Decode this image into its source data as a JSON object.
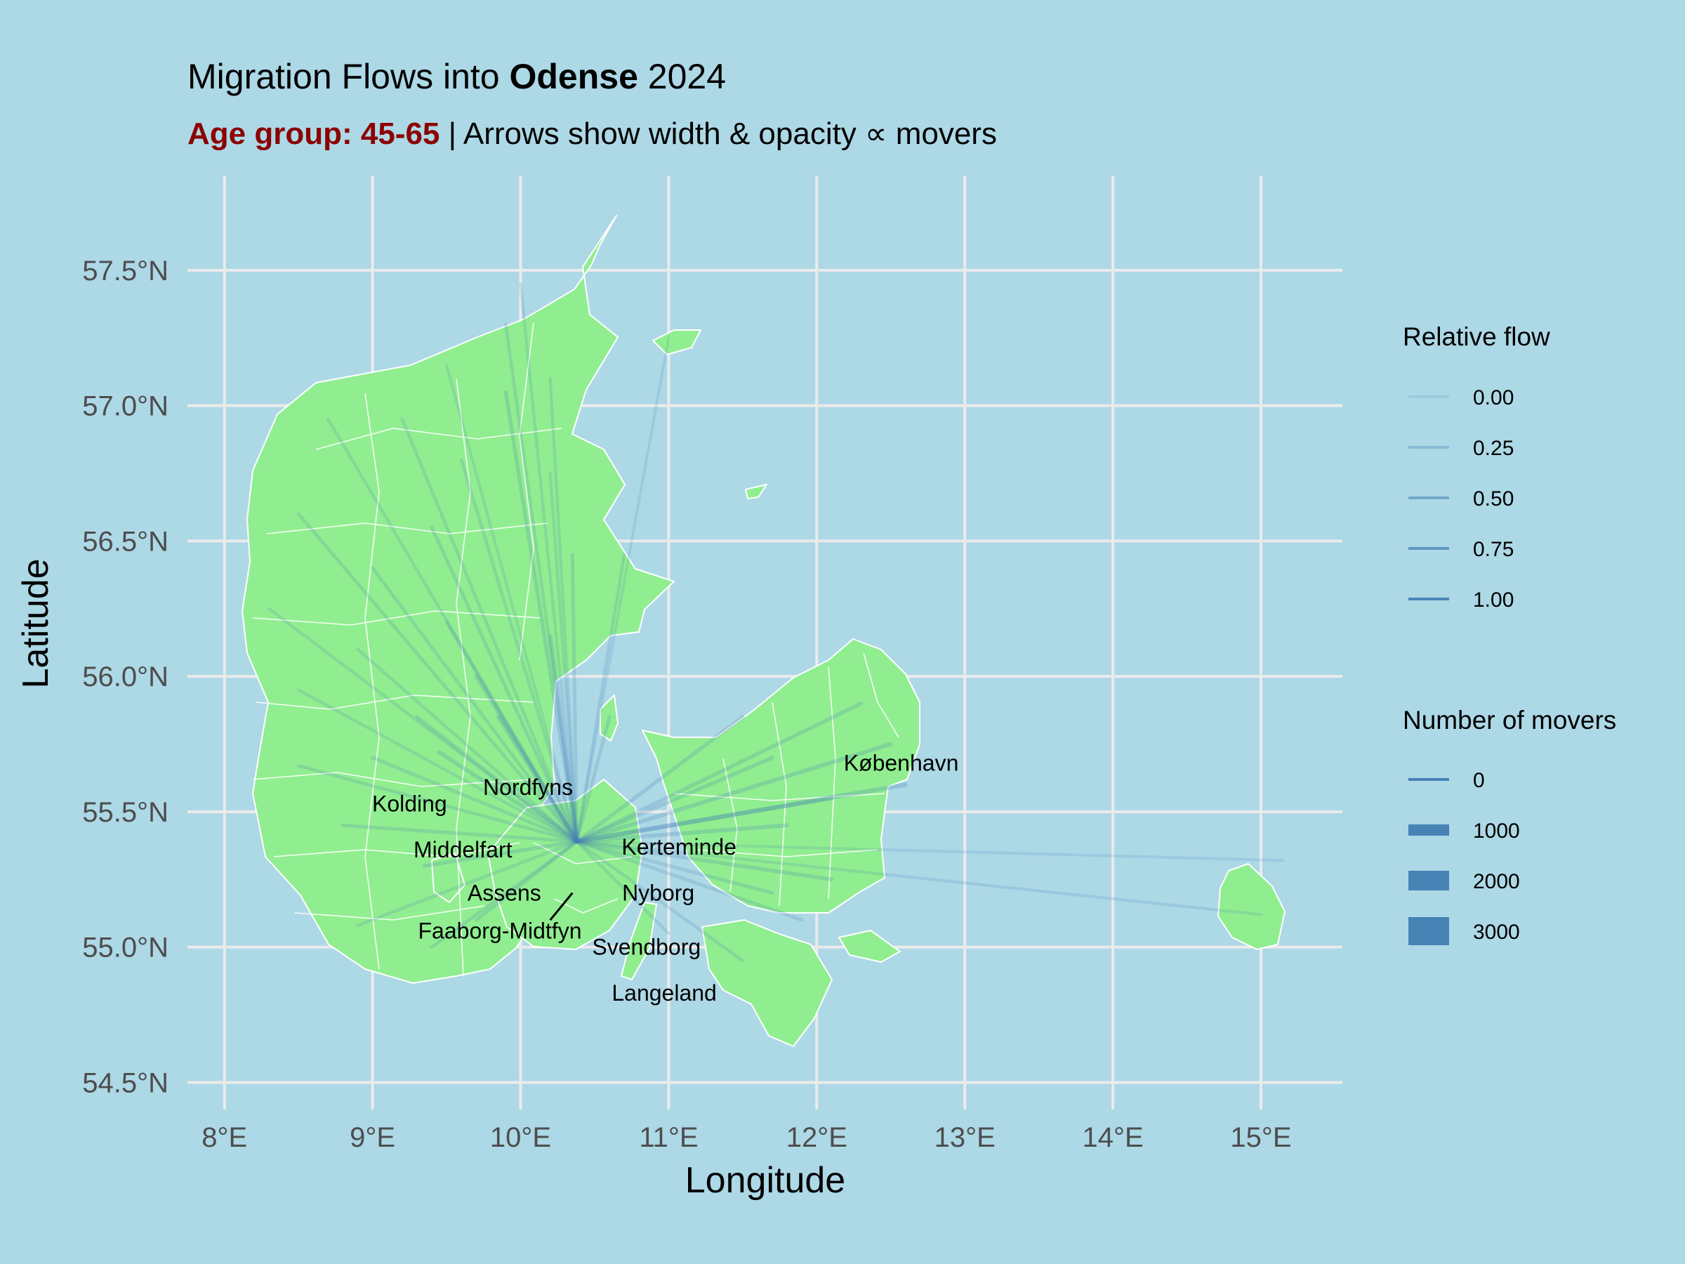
{
  "title": {
    "prefix": "Migration Flows into ",
    "bold": "Odense",
    "suffix": " 2024"
  },
  "subtitle": {
    "highlight": "Age group: 45-65",
    "rest": " | Arrows show width & opacity ∝ movers"
  },
  "axes": {
    "xlabel": "Longitude",
    "ylabel": "Latitude",
    "xlim": [
      7.75,
      15.55
    ],
    "ylim": [
      54.4,
      57.85
    ],
    "xticks": [
      {
        "v": 8,
        "label": "8°E"
      },
      {
        "v": 9,
        "label": "9°E"
      },
      {
        "v": 10,
        "label": "10°E"
      },
      {
        "v": 11,
        "label": "11°E"
      },
      {
        "v": 12,
        "label": "12°E"
      },
      {
        "v": 13,
        "label": "13°E"
      },
      {
        "v": 14,
        "label": "14°E"
      },
      {
        "v": 15,
        "label": "15°E"
      }
    ],
    "yticks": [
      {
        "v": 54.5,
        "label": "54.5°N"
      },
      {
        "v": 55.0,
        "label": "55.0°N"
      },
      {
        "v": 55.5,
        "label": "55.5°N"
      },
      {
        "v": 56.0,
        "label": "56.0°N"
      },
      {
        "v": 56.5,
        "label": "56.5°N"
      },
      {
        "v": 57.0,
        "label": "57.0°N"
      },
      {
        "v": 57.5,
        "label": "57.5°N"
      }
    ],
    "grid": true
  },
  "colors": {
    "land": "#90ee90",
    "sea": "#add8e6",
    "border": "#ffffff",
    "flow": "#4682b4",
    "grid": "#ebebeb",
    "subtitle_highlight": "#8b0000",
    "tick_text": "#4d4d4d"
  },
  "legend": {
    "position": "right",
    "relative_flow": {
      "title": "Relative flow",
      "items": [
        {
          "label": "0.00",
          "v": 0.0
        },
        {
          "label": "0.25",
          "v": 0.25
        },
        {
          "label": "0.50",
          "v": 0.5
        },
        {
          "label": "0.75",
          "v": 0.75
        },
        {
          "label": "1.00",
          "v": 1.0
        }
      ]
    },
    "movers": {
      "title": "Number of movers",
      "items": [
        {
          "label": "0",
          "v": 0
        },
        {
          "label": "1000",
          "v": 1000
        },
        {
          "label": "2000",
          "v": 2000
        },
        {
          "label": "3000",
          "v": 3000
        }
      ]
    }
  },
  "chart_data": {
    "type": "map",
    "destination": {
      "name": "Odense",
      "lon": 10.38,
      "lat": 55.39
    },
    "labels": [
      {
        "name": "København",
        "lon": 12.57,
        "lat": 55.68
      },
      {
        "name": "Nordfyns",
        "lon": 10.05,
        "lat": 55.59
      },
      {
        "name": "Kolding",
        "lon": 9.25,
        "lat": 55.53
      },
      {
        "name": "Middelfart",
        "lon": 9.61,
        "lat": 55.36
      },
      {
        "name": "Kerteminde",
        "lon": 11.07,
        "lat": 55.37
      },
      {
        "name": "Assens",
        "lon": 9.89,
        "lat": 55.2
      },
      {
        "name": "Nyborg",
        "lon": 10.93,
        "lat": 55.2
      },
      {
        "name": "Faaborg-Midtfyn",
        "lon": 9.86,
        "lat": 55.06
      },
      {
        "name": "Svendborg",
        "lon": 10.85,
        "lat": 55.0
      },
      {
        "name": "Langeland",
        "lon": 10.97,
        "lat": 54.83
      }
    ],
    "flows": [
      {
        "lon": 10.0,
        "lat": 57.45,
        "rel": 0.18
      },
      {
        "lon": 9.9,
        "lat": 57.3,
        "rel": 0.2
      },
      {
        "lon": 9.5,
        "lat": 57.15,
        "rel": 0.15
      },
      {
        "lon": 9.2,
        "lat": 56.95,
        "rel": 0.2
      },
      {
        "lon": 10.2,
        "lat": 57.1,
        "rel": 0.18
      },
      {
        "lon": 9.9,
        "lat": 57.05,
        "rel": 0.3
      },
      {
        "lon": 8.7,
        "lat": 56.95,
        "rel": 0.18
      },
      {
        "lon": 9.6,
        "lat": 56.8,
        "rel": 0.2
      },
      {
        "lon": 10.2,
        "lat": 56.75,
        "rel": 0.18
      },
      {
        "lon": 8.5,
        "lat": 56.6,
        "rel": 0.22
      },
      {
        "lon": 9.4,
        "lat": 56.55,
        "rel": 0.25
      },
      {
        "lon": 9.0,
        "lat": 56.4,
        "rel": 0.22
      },
      {
        "lon": 10.35,
        "lat": 56.45,
        "rel": 0.25
      },
      {
        "lon": 10.7,
        "lat": 56.45,
        "rel": 0.2
      },
      {
        "lon": 8.3,
        "lat": 56.25,
        "rel": 0.18
      },
      {
        "lon": 9.5,
        "lat": 56.2,
        "rel": 0.25
      },
      {
        "lon": 10.2,
        "lat": 56.15,
        "rel": 0.35
      },
      {
        "lon": 8.9,
        "lat": 56.1,
        "rel": 0.2
      },
      {
        "lon": 9.7,
        "lat": 56.0,
        "rel": 0.3
      },
      {
        "lon": 8.5,
        "lat": 55.95,
        "rel": 0.18
      },
      {
        "lon": 9.3,
        "lat": 55.85,
        "rel": 0.3
      },
      {
        "lon": 9.85,
        "lat": 55.85,
        "rel": 0.35
      },
      {
        "lon": 8.5,
        "lat": 55.67,
        "rel": 0.22
      },
      {
        "lon": 9.0,
        "lat": 55.7,
        "rel": 0.25
      },
      {
        "lon": 9.45,
        "lat": 55.72,
        "rel": 0.35
      },
      {
        "lon": 8.8,
        "lat": 55.45,
        "rel": 0.25
      },
      {
        "lon": 9.35,
        "lat": 55.3,
        "rel": 0.3
      },
      {
        "lon": 8.9,
        "lat": 55.08,
        "rel": 0.2
      },
      {
        "lon": 9.4,
        "lat": 55.0,
        "rel": 0.22
      },
      {
        "lon": 9.7,
        "lat": 55.1,
        "rel": 0.25
      },
      {
        "lon": 10.6,
        "lat": 55.85,
        "rel": 0.25
      },
      {
        "lon": 11.0,
        "lat": 57.25,
        "rel": 0.12
      },
      {
        "lon": 11.5,
        "lat": 55.85,
        "rel": 0.3
      },
      {
        "lon": 11.7,
        "lat": 55.7,
        "rel": 0.3
      },
      {
        "lon": 11.8,
        "lat": 55.45,
        "rel": 0.35
      },
      {
        "lon": 12.1,
        "lat": 55.55,
        "rel": 0.4
      },
      {
        "lon": 12.3,
        "lat": 55.9,
        "rel": 0.3
      },
      {
        "lon": 12.5,
        "lat": 55.75,
        "rel": 0.35
      },
      {
        "lon": 12.6,
        "lat": 55.6,
        "rel": 0.4
      },
      {
        "lon": 12.1,
        "lat": 55.25,
        "rel": 0.3
      },
      {
        "lon": 11.9,
        "lat": 55.1,
        "rel": 0.25
      },
      {
        "lon": 11.5,
        "lat": 54.95,
        "rel": 0.2
      },
      {
        "lon": 11.0,
        "lat": 55.05,
        "rel": 0.2
      },
      {
        "lon": 15.0,
        "lat": 55.12,
        "rel": 0.15
      },
      {
        "lon": 15.15,
        "lat": 55.32,
        "rel": 0.12
      },
      {
        "lon": 11.7,
        "lat": 55.2,
        "rel": 0.25
      }
    ],
    "highlight_arrow": {
      "from": {
        "lon": 10.35,
        "lat": 55.2
      },
      "to": {
        "lon": 10.2,
        "lat": 55.1
      }
    }
  }
}
